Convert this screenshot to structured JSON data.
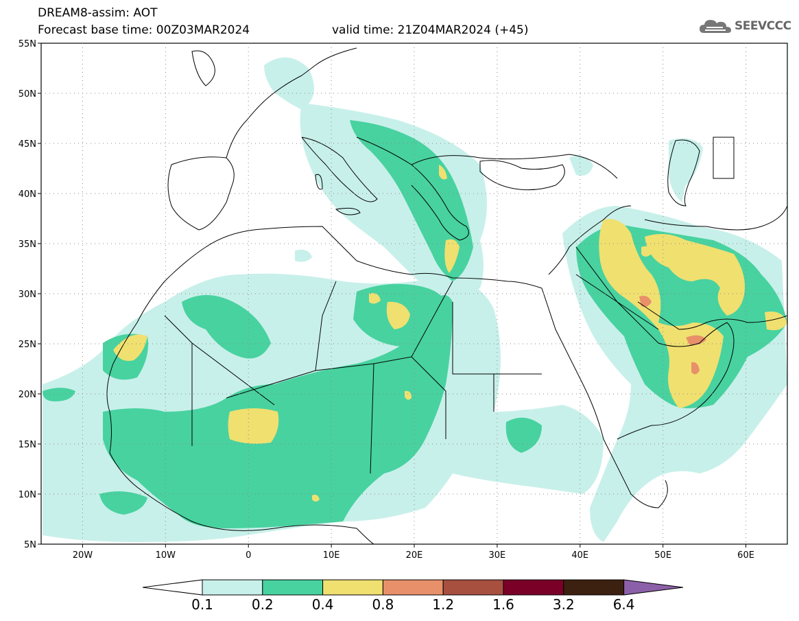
{
  "header": {
    "line1": "DREAM8-assim: AOT",
    "line2": "Forecast base time: 00Z03MAR2024",
    "valid": "valid time: 21Z04MAR2024 (+45)",
    "logo_text": "SEEVCCC",
    "logo_icon": "cloud-icon"
  },
  "map": {
    "lon_range": [
      -25,
      65
    ],
    "lat_range": [
      5,
      55
    ],
    "lat_labels": [
      "55N",
      "50N",
      "45N",
      "40N",
      "35N",
      "30N",
      "25N",
      "20N",
      "15N",
      "10N",
      "5N"
    ],
    "lon_labels": [
      "20W",
      "10W",
      "0",
      "10E",
      "20E",
      "30E",
      "40E",
      "50E",
      "60E"
    ],
    "colors": {
      "0.1": "#c8f0ea",
      "0.2": "#48d2a0",
      "0.4": "#f0e070",
      "0.8": "#e8906a",
      "1.2": "#a85040",
      "1.6": "#7a0028",
      "3.2": "#3c2010",
      "6.4": "#8c60a8"
    }
  },
  "colorbar": {
    "labels": [
      "0.1",
      "0.2",
      "0.4",
      "0.8",
      "1.2",
      "1.6",
      "3.2",
      "6.4"
    ],
    "colors": [
      "#c8f0ea",
      "#48d2a0",
      "#f0e070",
      "#e8906a",
      "#a85040",
      "#7a0028",
      "#3c2010"
    ],
    "low_color": "#ffffff",
    "high_color": "#8c60a8"
  }
}
